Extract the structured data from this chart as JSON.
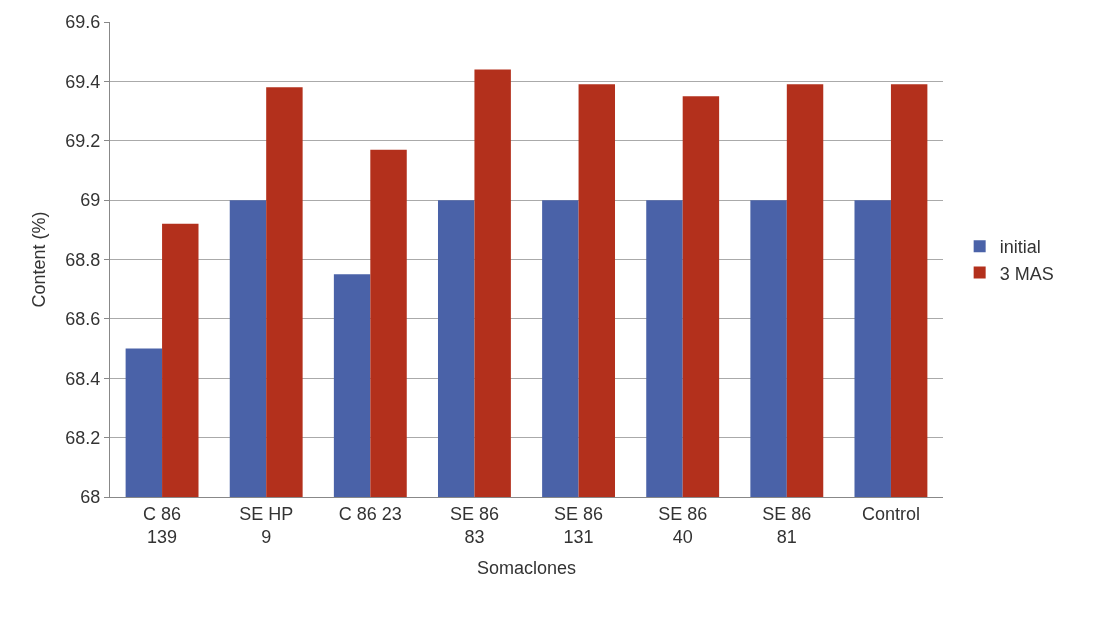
{
  "chart_data": {
    "type": "bar",
    "xlabel": "Somaclones",
    "ylabel": "Content (%)",
    "categories": [
      "C 86\n139",
      "SE HP\n9",
      "C 86 23",
      "SE 86\n83",
      "SE 86\n131",
      "SE 86\n40",
      "SE 86\n81",
      "Control"
    ],
    "series": [
      {
        "name": "initial",
        "color": "#4a62a8",
        "values": [
          68.5,
          69.0,
          68.75,
          69.0,
          69.0,
          69.0,
          69.0,
          69.0
        ]
      },
      {
        "name": "3 MAS",
        "color": "#b3301c",
        "values": [
          68.92,
          69.38,
          69.17,
          69.44,
          69.39,
          69.35,
          69.39,
          69.39
        ]
      }
    ],
    "ylim": [
      68,
      69.6
    ],
    "yticks": [
      68,
      68.2,
      68.4,
      68.6,
      68.8,
      69,
      69.2,
      69.4,
      69.6
    ],
    "grid": "y",
    "legend": "right"
  }
}
